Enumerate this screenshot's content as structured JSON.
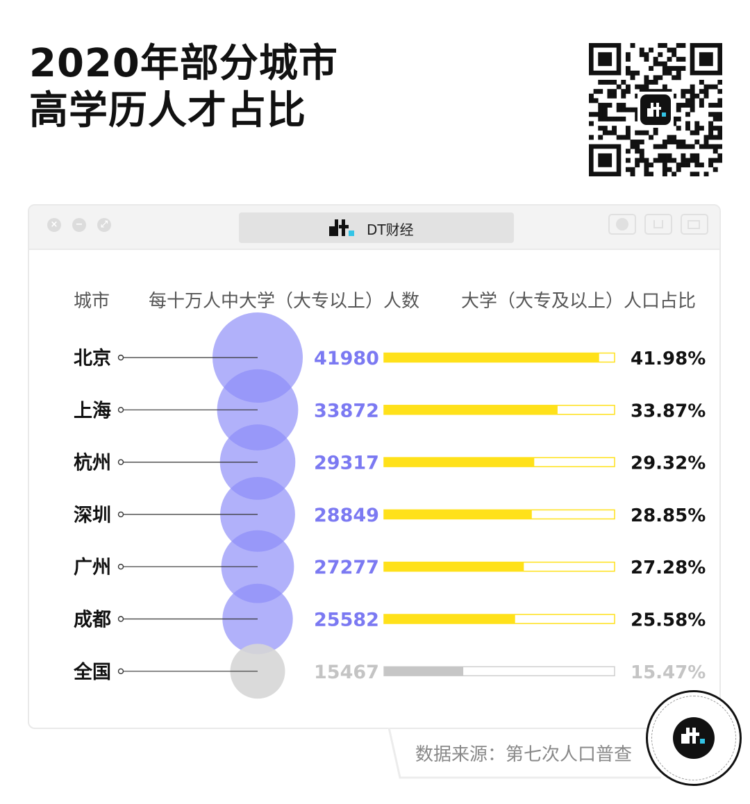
{
  "title_line1": "2020年部分城市",
  "title_line2": "高学历人才占比",
  "window": {
    "tab_label": "DT财经"
  },
  "headers": {
    "city": "城市",
    "count": "每十万人中大学（大专以上）人数",
    "share": "大学（大专及以上）人口占比"
  },
  "source": "数据来源：第七次人口普查",
  "colors": {
    "bubble": "#8c8cf7",
    "bubble_national": "#d6d6d6",
    "bar": "#ffe11a",
    "bar_national": "#c6c6c6",
    "count_text": "#7b79f2",
    "national_text": "#c4c4c4"
  },
  "chart_data": {
    "type": "table",
    "columns": [
      "城市",
      "每十万人中大学（大专以上）人数",
      "大学（大专及以上）人口占比"
    ],
    "rows": [
      {
        "city": "北京",
        "count": 41980,
        "count_label": "41980",
        "share": 41.98,
        "share_label": "41.98%"
      },
      {
        "city": "上海",
        "count": 33872,
        "count_label": "33872",
        "share": 33.87,
        "share_label": "33.87%"
      },
      {
        "city": "杭州",
        "count": 29317,
        "count_label": "29317",
        "share": 29.32,
        "share_label": "29.32%"
      },
      {
        "city": "深圳",
        "count": 28849,
        "count_label": "28849",
        "share": 28.85,
        "share_label": "28.85%"
      },
      {
        "city": "广州",
        "count": 27277,
        "count_label": "27277",
        "share": 27.28,
        "share_label": "27.28%"
      },
      {
        "city": "成都",
        "count": 25582,
        "count_label": "25582",
        "share": 25.58,
        "share_label": "25.58%"
      },
      {
        "city": "全国",
        "count": 15467,
        "count_label": "15467",
        "share": 15.47,
        "share_label": "15.47%",
        "national": true
      }
    ],
    "share_max": 45
  }
}
